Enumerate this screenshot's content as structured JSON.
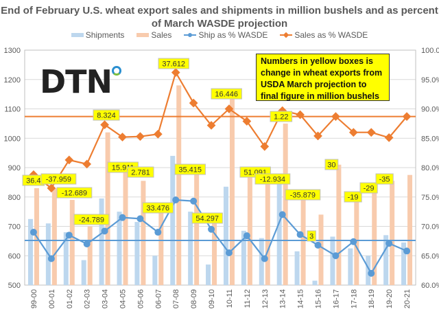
{
  "logo_text": "DTN",
  "note": "Numbers in yellow boxes  is change in wheat exports from USDA March projection to final figure in million bushels",
  "chart_data": {
    "type": "bar+line",
    "title": "End of February U.S. wheat export sales and shipments in million bushels and as percent of March WASDE projection",
    "categories": [
      "99-00",
      "00-01",
      "01-02",
      "02-03",
      "03-04",
      "04-05",
      "05-06",
      "06-07",
      "07-08",
      "08-09",
      "09-10",
      "10-11",
      "11-12",
      "12-13",
      "13-14",
      "14-15",
      "15-16",
      "16-17",
      "17-18",
      "18-19",
      "19-20",
      "20-21"
    ],
    "left_axis": {
      "min": 500,
      "max": 1300,
      "step": 100,
      "ticks": [
        "500",
        "600",
        "700",
        "800",
        "900",
        "1000",
        "1100",
        "1200",
        "1300"
      ]
    },
    "right_axis": {
      "min": 60,
      "max": 100,
      "step": 5,
      "ticks": [
        "60.0%",
        "65.0%",
        "70.0%",
        "75.0%",
        "80.0%",
        "85.0%",
        "90.0%",
        "95.0%",
        "100.0%"
      ]
    },
    "grid": true,
    "legend_position": "top",
    "series": [
      {
        "name": "Shipments",
        "type": "bar",
        "axis": "left",
        "color": "#bdd7ee",
        "values": [
          725,
          710,
          680,
          585,
          795,
          750,
          715,
          600,
          940,
          750,
          570,
          835,
          685,
          660,
          845,
          615,
          515,
          665,
          625,
          600,
          670,
          645
        ]
      },
      {
        "name": "Sales",
        "type": "bar",
        "axis": "left",
        "color": "#f8cbad",
        "values": [
          830,
          830,
          790,
          700,
          1020,
          895,
          855,
          750,
          1180,
          890,
          730,
          1150,
          885,
          860,
          1050,
          800,
          740,
          910,
          795,
          830,
          855,
          875
        ]
      },
      {
        "name": "Ship as % WASDE",
        "type": "line",
        "axis": "right",
        "color": "#5b9bd5",
        "values": [
          69.0,
          64.5,
          68.5,
          67.0,
          69.2,
          71.5,
          71.3,
          69.0,
          74.5,
          74.3,
          69.5,
          65.5,
          68.4,
          64.5,
          72.0,
          68.6,
          66.8,
          65.0,
          67.4,
          62.0,
          67.1,
          65.8
        ]
      },
      {
        "name": "Sales as % WASDE",
        "type": "line",
        "axis": "right",
        "color": "#ed7d31",
        "values": [
          78.8,
          76.5,
          81.3,
          80.6,
          87.3,
          85.2,
          85.3,
          85.7,
          96.2,
          91.0,
          87.2,
          90.0,
          87.9,
          83.6,
          89.7,
          89.0,
          85.4,
          88.7,
          86.0,
          86.0,
          85.1,
          88.7
        ]
      }
    ],
    "reference_lines": [
      {
        "axis": "right",
        "value": 88.7,
        "color": "#ed7d31"
      },
      {
        "axis": "right",
        "value": 67.6,
        "color": "#5b9bd5"
      }
    ],
    "annotations": [
      "36.4",
      "-37.959",
      "-12.689",
      "-24.789",
      "8.324",
      "15.911",
      "2.781",
      "33.476",
      "37.612",
      "35.415",
      "54.297",
      "16.446",
      "51.091",
      "-12.934",
      "1.22",
      "-35.879",
      "3",
      "30",
      "-19",
      "-29",
      "-35"
    ]
  }
}
